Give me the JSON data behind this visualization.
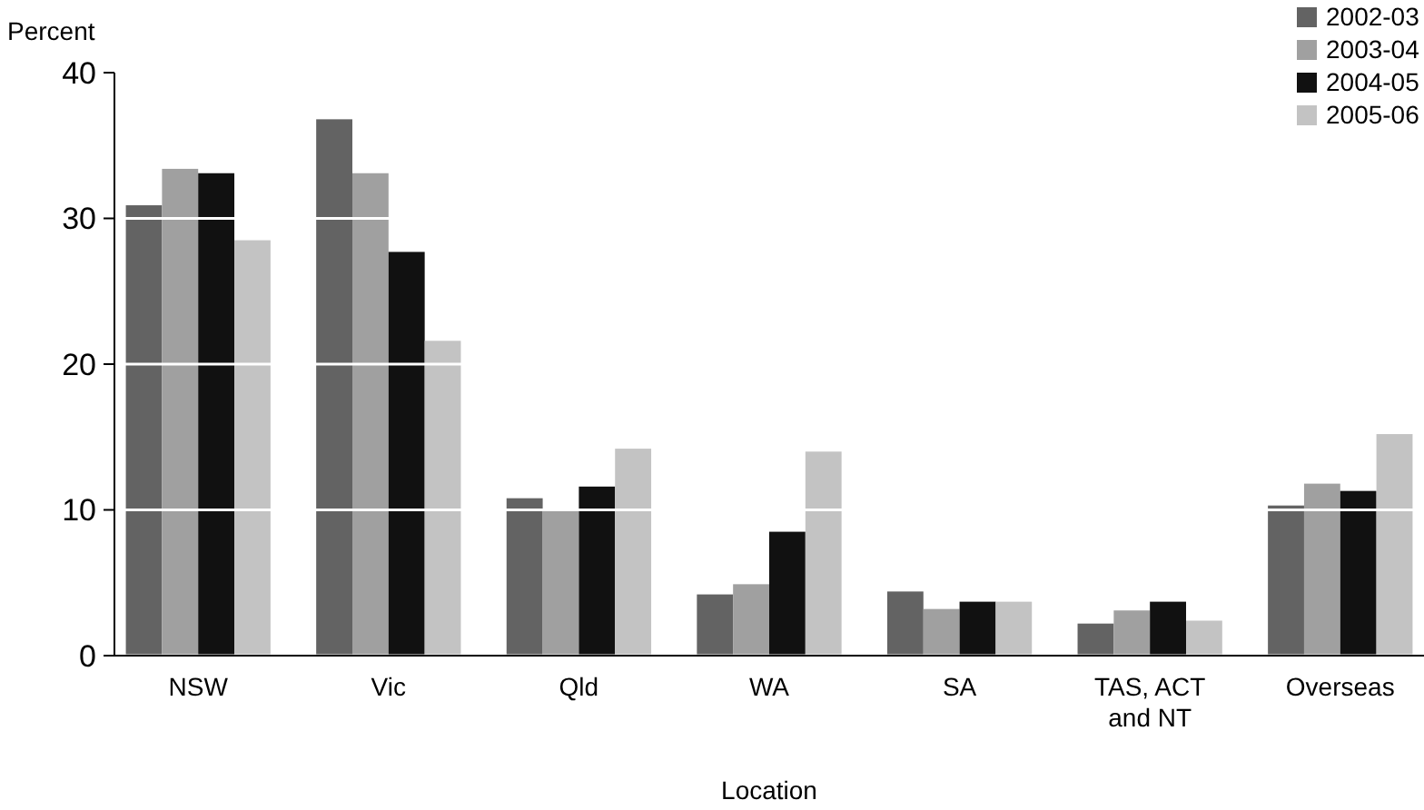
{
  "chart_data": {
    "type": "bar",
    "xlabel": "Location",
    "ylabel": "Percent",
    "categories": [
      "NSW",
      "Vic",
      "Qld",
      "WA",
      "SA",
      "TAS, ACT and NT",
      "Overseas"
    ],
    "series": [
      {
        "name": "2002-03",
        "color": "#636363",
        "values": [
          30.9,
          36.8,
          10.8,
          4.2,
          4.4,
          2.2,
          10.3
        ]
      },
      {
        "name": "2003-04",
        "color": "#a0a0a0",
        "values": [
          33.4,
          33.1,
          10.0,
          4.9,
          3.2,
          3.1,
          11.8
        ]
      },
      {
        "name": "2004-05",
        "color": "#111111",
        "values": [
          33.1,
          27.7,
          11.6,
          8.5,
          3.7,
          3.7,
          11.3
        ]
      },
      {
        "name": "2005-06",
        "color": "#c3c3c3",
        "values": [
          28.5,
          21.6,
          14.2,
          14.0,
          3.7,
          2.4,
          15.2
        ]
      }
    ],
    "ylim": [
      0,
      40
    ],
    "yticks": [
      0,
      10,
      20,
      30,
      40
    ],
    "grid": "y",
    "legend": "top right"
  }
}
